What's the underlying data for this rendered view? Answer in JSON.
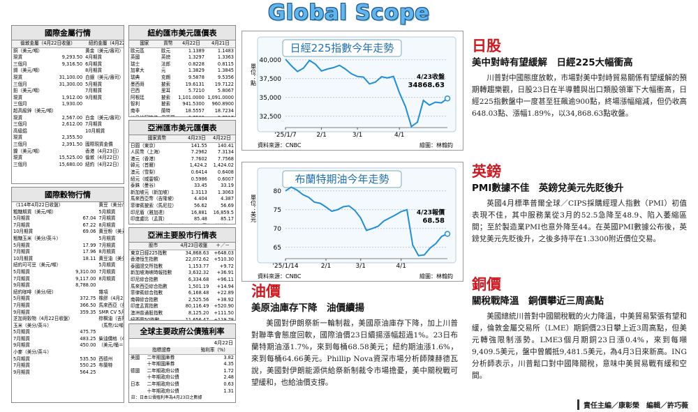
{
  "header": {
    "title": "Global Scope"
  },
  "tables": [
    {
      "title": "國際金屬行情",
      "header": [
        "倫敦金屬（4月22日收盤）",
        "紐約金屬（4月22日收盤）"
      ],
      "rows": [
        [
          "銅（美元/噸）",
          null,
          "黃金（美元/盎司）",
          null
        ],
        [
          "現貨",
          "9,293.50",
          "4月期貨",
          "3,400.80"
        ],
        [
          "三個月",
          "9,316.50",
          "6月期貨",
          "3,409.20"
        ],
        [
          "錫（美元/噸）",
          null,
          "8月期貨",
          "3,419.40"
        ],
        [
          "現貨",
          "31,100.00",
          "白銀（美元/盎司）",
          null
        ],
        [
          "三個月",
          "31,300.00",
          "5月期貨",
          "32.905"
        ],
        [
          "鉛（美元/噸）",
          null,
          "7月期貨",
          "33.064"
        ],
        [
          "現貨",
          "1,912.00",
          "9月期貨",
          "33.213"
        ],
        [
          "三個月",
          "1,930.00",
          null,
          null
        ],
        [
          "超高級鋅（美元/噸）",
          null,
          null,
          null
        ],
        [
          "現貨",
          "2,567.00",
          "白金（美元/盎司）",
          null
        ],
        [
          "三個月",
          "2,612.00",
          "7月期貨",
          "953.40"
        ],
        [
          "高級鋁",
          null,
          "10月期貨",
          "956.30"
        ],
        [
          "現貨",
          "2,355.50",
          null,
          null
        ],
        [
          "三個月",
          "2,391.50",
          "國際現貨金價",
          null
        ],
        [
          "鎳（美元/噸）",
          null,
          "香港（4月23日）",
          "3,313.11"
        ],
        [
          "現貨",
          "15,525.00",
          "倫敦（4月22日）",
          "3,433.50"
        ],
        [
          "三個月",
          "15,680.00",
          "紐約（4月22日）",
          "3,306.30"
        ]
      ]
    },
    {
      "title": "國際穀物行情",
      "rows": [
        [
          "（114年4月22日收盤）",
          null,
          "黃豆（美分/英斗）",
          null
        ],
        [
          "粗糖期貨（美元/噸）",
          null,
          "5月期貨",
          "1,035.60"
        ],
        [
          "5月期貨",
          "67.04",
          "7月期貨",
          "1,046.60"
        ],
        [
          "7月期貨",
          "67.22",
          "8月期貨",
          "1,040.50"
        ],
        [
          "10月期貨",
          "69.06",
          "黃豆粉（美元/噸）",
          null
        ],
        [
          "粗糖玉米（美分/英斗）",
          null,
          "5月期貨",
          "291.90"
        ],
        [
          "5月期貨",
          "17.99",
          "7月期貨",
          "299.50"
        ],
        [
          "7月期貨",
          "17.96",
          "8月期貨",
          "301.30"
        ],
        [
          "10月期貨",
          "18.11",
          "黃豆油（美分/磅）",
          null
        ],
        [
          "紐約可可豆（美元/噸）",
          null,
          "5月期貨",
          "47.99"
        ],
        [
          "5月期貨",
          "9,310.00",
          "7月期貨",
          "48.03"
        ],
        [
          "7月期貨",
          "9,117.00",
          "8月期貨",
          "47.95"
        ],
        [
          "9月期貨",
          "8,788.00",
          null,
          null
        ],
        [
          "紐約咖啡（美分/磅）",
          null,
          "雜項",
          null
        ],
        [
          "5月期貨",
          "372.75",
          "橡膠（4月23日收盤）",
          null
        ],
        [
          "7月期貨",
          "366.50",
          "馬來西亞（美分/公斤）",
          null
        ],
        [
          "9月期貨",
          "359.35",
          "SMR CV 5月",
          "248.60"
        ],
        [
          "芝加哥穀物（4月22日收盤）",
          null,
          "棕櫚油（吉隆坡）",
          null
        ],
        [
          "玉米（美分/英斗）",
          null,
          "（馬幣/公噸）",
          null
        ],
        [
          "5月期貨",
          "475.75",
          null,
          null
        ],
        [
          "7月期貨",
          "483.25",
          "柴油價格（4月23日收盤）",
          null
        ],
        [
          "9月期貨",
          "450.00",
          "（美元/桶＝42美制加侖）",
          "158.98"
        ],
        [
          "小麥（美分/英斗）",
          null,
          null,
          null
        ],
        [
          "5月期貨",
          "535.50",
          "西德州",
          "64.81"
        ],
        [
          "7月期貨",
          "550.25",
          "布蘭特",
          "68.47"
        ],
        [
          "9月期貨",
          "564.25",
          null,
          null
        ]
      ]
    },
    {
      "title": "紐約匯市美元匯價表",
      "header": [
        "國家",
        "貨幣",
        "4月22日",
        "4月21日"
      ],
      "rows": [
        [
          "歐元區",
          "歐元",
          "1.1389",
          "1.1483"
        ],
        [
          "英國",
          "英鎊",
          "1.3297",
          "1.3363"
        ],
        [
          "瑞士",
          "法郎",
          "0.8228",
          "0.8115"
        ],
        [
          "加拿大",
          "元",
          "1.3829",
          "1.3845"
        ],
        [
          "瑞典",
          "克朗",
          "9.5878",
          "9.5356"
        ],
        [
          "墨西哥",
          "披索",
          "19.6131",
          "19.7122"
        ],
        [
          "巴西",
          "里耳",
          "5.7210",
          "5.8067"
        ],
        [
          "阿根廷",
          "披索",
          "1,101.0000",
          "1,091.0000"
        ],
        [
          "智利",
          "披索",
          "941.5300",
          "960.8900"
        ],
        [
          "南非",
          "蘭特",
          "18.5557",
          "18.7234"
        ],
        [
          "沙烏地阿拉伯",
          "里亞爾",
          "3.7509",
          "3.7517"
        ]
      ]
    },
    {
      "title": "亞洲匯市美元匯價表",
      "header": [
        "國家貨幣",
        "4月23日",
        "4月22日"
      ],
      "rows": [
        [
          "日圓（東京）",
          "141.55",
          "140.41"
        ],
        [
          "人民幣（上海）",
          "7.2962",
          "7.3134"
        ],
        [
          "港元（香港）",
          "7.7602",
          "7.7568"
        ],
        [
          "韓元（首爾）",
          "1,424.2",
          "1,424.02"
        ],
        [
          "澳元（雪梨）",
          "0.6414",
          "0.6408"
        ],
        [
          "紐元（威靈頓）",
          "0.5986",
          "0.6007"
        ],
        [
          "泰銖（曼谷）",
          "33.45",
          "33.19"
        ],
        [
          "新加坡元（新加坡）",
          "1.3113",
          "1.3063"
        ],
        [
          "馬來西亞幣（吉隆坡）",
          "4.404",
          "4.387"
        ],
        [
          "菲律賓披索（馬尼拉）",
          "56.62",
          "56.69"
        ],
        [
          "印尼盾（雅加達）",
          "16,881",
          "16,859.5"
        ],
        [
          "印度盧比（孟買）",
          "85.48",
          "85.17"
        ]
      ],
      "note": "註：澳元、紐元為一澳元、紐元兌美元匯率，其餘為一美元兌其他貨幣匯率"
    },
    {
      "title": "亞洲主要股市行情表",
      "header": [
        "股市",
        "4月23日收盤",
        "＋／－"
      ],
      "rows": [
        [
          "東京日經225指數",
          "34,868.63",
          "+648.03"
        ],
        [
          "香港恒生指數",
          "22,072.62",
          "+510.30"
        ],
        [
          "泰國證交所指數",
          "1,153.77",
          "+9.72"
        ],
        [
          "新加坡海峽時報指數",
          "3,632.32",
          "+36.91"
        ],
        [
          "印尼綜合指數",
          "6,334.68",
          "+96.11"
        ],
        [
          "馬來西亞綜合指數",
          "1,501.19",
          "+14.94"
        ],
        [
          "菲律賓綜合指數",
          "6,168.48",
          "+22.89"
        ],
        [
          "南韓綜合指數",
          "2,525.56",
          "+38.92"
        ],
        [
          "印度孟買指數",
          "80,116.49",
          "+520.90"
        ],
        [
          "澳洲普通股指數",
          "8,125.20",
          "+111.50"
        ],
        [
          "紐西蘭50指數",
          "11,656.47",
          "+119.78"
        ]
      ]
    },
    {
      "title": "全球主要政府公債殖利率",
      "subtitle": "4月22日",
      "header": [
        "指標證券",
        "殖利率（%）"
      ],
      "rows": [
        [
          "美國",
          "二年期國庫券",
          "3.82"
        ],
        [
          null,
          "十年期國庫券",
          "4.35"
        ],
        [
          "德國",
          "二年期政府公債",
          "1.72"
        ],
        [
          null,
          "十年期政府公債",
          "2.48"
        ],
        [
          "日本",
          "二年期政府公債",
          "0.63"
        ],
        [
          null,
          "十年期政府公債",
          "1.31"
        ]
      ],
      "note": "註：日本公債殖利率為4月23日之數據"
    }
  ],
  "chart_data": [
    {
      "type": "line",
      "title": "日經225指數今年走勢",
      "y_label": "單位：點",
      "color": "#1f8ed8",
      "categories": [
        "'25/1/7",
        null,
        null,
        null,
        null,
        null,
        "2/1",
        null,
        null,
        null,
        null,
        null,
        "3/1",
        null,
        null,
        null,
        null,
        null,
        null,
        "4/1",
        null,
        null,
        null,
        null,
        null,
        null,
        null,
        null
      ],
      "values": [
        40080,
        39190,
        38440,
        38900,
        39930,
        39410,
        38520,
        38780,
        38960,
        39270,
        38770,
        38140,
        37790,
        37700,
        36800,
        37050,
        37750,
        37600,
        37800,
        35600,
        33780,
        31140,
        31710,
        34610,
        33980,
        34380,
        34280,
        34868.63
      ],
      "ylim": [
        31000,
        41000
      ],
      "yticks": [
        {
          "value": 32500,
          "label": "32,500"
        },
        {
          "value": 35000,
          "label": "35,000"
        },
        {
          "value": 37500,
          "label": "37,500"
        },
        {
          "value": 40000,
          "label": "40,000"
        }
      ],
      "annotation": [
        "4/23收盤",
        "34868.63"
      ],
      "source": "資料來源：CNBC",
      "credit": "繪圖：林翰鈞"
    },
    {
      "type": "line",
      "title": "布蘭特期油今年走勢",
      "y_label": "單位：美元",
      "color": "#1f8ed8",
      "categories": [
        "'25/1/14",
        null,
        null,
        null,
        null,
        null,
        null,
        "2/1",
        null,
        null,
        null,
        null,
        null,
        "3/1",
        null,
        null,
        null,
        null,
        null,
        null,
        "4/1",
        null,
        null,
        null,
        null,
        null,
        null,
        null,
        null
      ],
      "values": [
        80.0,
        81.0,
        80.2,
        79.0,
        78.3,
        77.0,
        76.7,
        75.7,
        74.6,
        75.0,
        75.8,
        76.0,
        74.8,
        72.8,
        69.5,
        70.0,
        70.6,
        72.0,
        72.8,
        73.6,
        74.5,
        75.0,
        65.6,
        62.8,
        63.0,
        64.8,
        66.0,
        67.9,
        68.58
      ],
      "ylim": [
        62,
        82
      ],
      "yticks": [
        65,
        70,
        75,
        80
      ],
      "annotation": [
        "4/23報價",
        "68.58"
      ],
      "source": "資料來源：CNBC",
      "credit": "繪圖：林翰鈞"
    }
  ],
  "articles": [
    {
      "section": "日股",
      "headline": "美中對峙有望緩解　日經225大幅衝高",
      "body": "川普對中國態度放軟，市場對美中對峙貿易關係有望緩解的預期轉趨樂觀，日股23日在半導體與出口類股領軍下大幅衝高，日經225指數盤中一度甚至狂飆逾900點，終場漲幅縮減，但仍收高648.03點、漲幅1.89%，以34,868.63點收盤。"
    },
    {
      "section": "英鎊",
      "headline": "PMI數據不佳　英鎊兌美元先貶後升",
      "body": "英國4月標準普爾全球／CIPS採購經理人指數（PMI）初值表現不佳，其中服務業從3月的52.5急降至48.9、陷入萎縮區間；至於製造業PMI也意外降至44。在英國PMI數據公布後，英鎊兌美元先貶後升，之後多持平在1.3300附近價位交易。"
    },
    {
      "section": "銅價",
      "headline": "關稅戰降溫　銅價攀近三周高點",
      "body": "美國總統川普對中國關稅戰的火力降溫，中美貿易緊張有望和緩，倫敦金屬交易所（LME）期銅價23日攀上近3周高點，但美元轉強限制漲勢。LME3個月期銅23日漲0.4%，來到每噸9,409.5美元，盤中曾觸抵9,481.5美元，為4月3日來新高。ING分析師表示，川普鬆口對中國降關稅，意味中美貿易戰有緩和空間。"
    },
    {
      "section": "油價",
      "headline": "美原油庫存下降　油價續揚",
      "body": "美國對伊朗祭新一輪制裁，美國原油庫存下降，加上川普對聯準會態度回軟，國際油價23日續揚漲幅超過1%。23日布蘭特期油漲1.7%，來到每桶68.58美元；紐約期油漲1.6%，來到每桶64.66美元。Phillip Nova資深市場分析師陳赫德瓦說，美國對伊朗能源供給祭新制裁令市場擔憂，美中關稅戰可望緩和，也給油價支撐。"
    }
  ],
  "footer": {
    "credits": "責任主編／康彰榮　編輯／許巧薇"
  }
}
